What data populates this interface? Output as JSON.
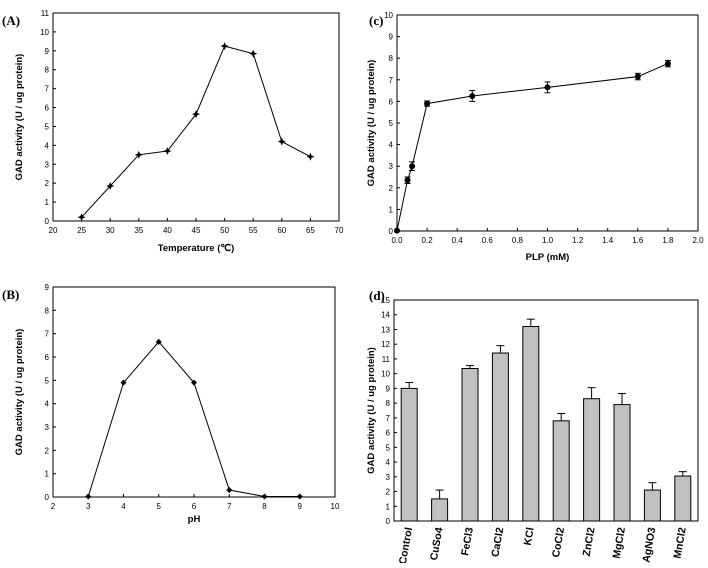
{
  "chart_data": [
    {
      "panel": "(A)",
      "type": "line",
      "xlabel": "Temperature (℃)",
      "ylabel": "GAD activity (U / ug protein)",
      "xlim": [
        20,
        70
      ],
      "ylim": [
        0,
        11
      ],
      "xticks": [
        20,
        25,
        30,
        35,
        40,
        45,
        50,
        55,
        60,
        65,
        70
      ],
      "yticks": [
        0,
        1,
        2,
        3,
        4,
        5,
        6,
        7,
        8,
        9,
        10,
        11
      ],
      "x": [
        25,
        30,
        35,
        40,
        45,
        50,
        55,
        60,
        65
      ],
      "y": [
        0.2,
        1.85,
        3.5,
        3.7,
        5.65,
        9.25,
        8.85,
        4.2,
        3.4
      ]
    },
    {
      "panel": "(B)",
      "type": "line",
      "xlabel": "pH",
      "ylabel": "GAD activity (U / ug protein)",
      "xlim": [
        2,
        10
      ],
      "ylim": [
        0,
        9
      ],
      "xticks": [
        2,
        3,
        4,
        5,
        6,
        7,
        8,
        9,
        10
      ],
      "yticks": [
        0,
        1,
        2,
        3,
        4,
        5,
        6,
        7,
        8,
        9
      ],
      "x": [
        3,
        4,
        5,
        6,
        7,
        8,
        9
      ],
      "y": [
        0.02,
        4.9,
        6.65,
        4.9,
        0.3,
        0.02,
        0.02
      ]
    },
    {
      "panel": "(c)",
      "type": "line",
      "xlabel": "PLP (mM)",
      "ylabel": "GAD activity (U / ug protein)",
      "xlim": [
        0,
        2
      ],
      "ylim": [
        0,
        10
      ],
      "xticks": [
        "0.0",
        "0.2",
        "0.4",
        "0.6",
        "0.8",
        "1.0",
        "1.2",
        "1.4",
        "1.6",
        "1.8",
        "2.0"
      ],
      "yticks": [
        0,
        1,
        2,
        3,
        4,
        5,
        6,
        7,
        8,
        9,
        10
      ],
      "x": [
        0,
        0.07,
        0.1,
        0.2,
        0.5,
        1.0,
        1.6,
        1.8
      ],
      "y": [
        0.02,
        2.35,
        3.0,
        5.9,
        6.25,
        6.65,
        7.15,
        7.75
      ],
      "err": [
        0,
        0.15,
        0.2,
        0.12,
        0.25,
        0.25,
        0.15,
        0.15
      ]
    },
    {
      "panel": "(d)",
      "type": "bar",
      "ylabel": "GAD activity (U / ug protein)",
      "ylim": [
        0,
        15
      ],
      "yticks": [
        0,
        1,
        2,
        3,
        4,
        5,
        6,
        7,
        8,
        9,
        10,
        11,
        12,
        13,
        14,
        15
      ],
      "categories": [
        "Control",
        "CuSo4",
        "FeCl3",
        "CaCl2",
        "KCl",
        "CoCl2",
        "ZnCl2",
        "MgCl2",
        "AgNO3",
        "MnCl2"
      ],
      "values": [
        9.0,
        1.5,
        10.35,
        11.4,
        13.2,
        6.8,
        8.3,
        7.9,
        2.1,
        3.05
      ],
      "err": [
        0.4,
        0.6,
        0.2,
        0.5,
        0.5,
        0.5,
        0.75,
        0.75,
        0.5,
        0.3
      ]
    }
  ]
}
